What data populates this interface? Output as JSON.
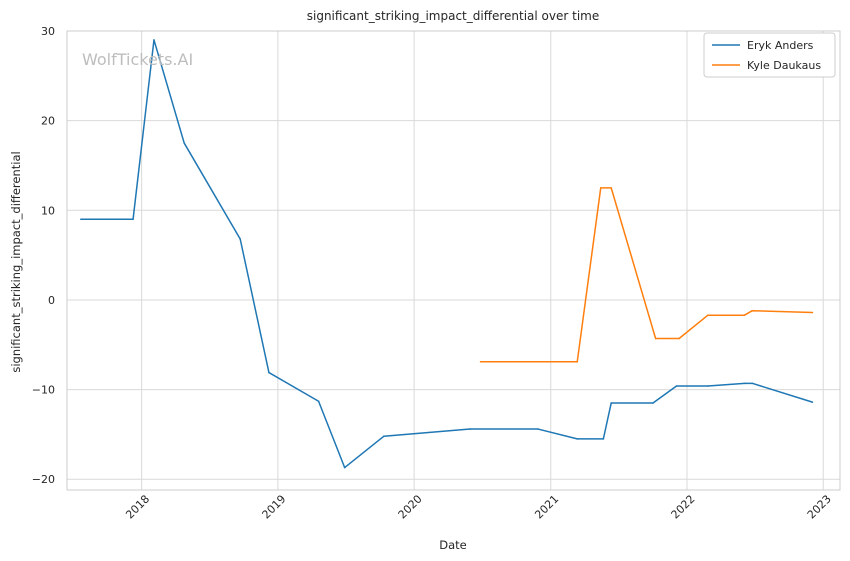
{
  "chart_data": {
    "type": "line",
    "title": "significant_striking_impact_differential over time",
    "xlabel": "Date",
    "ylabel": "significant_striking_impact_differential",
    "watermark": "WolfTickets.AI",
    "x_ticks": [
      "2018",
      "2019",
      "2020",
      "2021",
      "2022",
      "2023"
    ],
    "y_ticks": [
      30,
      20,
      10,
      0,
      -10,
      -20
    ],
    "xlim": [
      "2017-06-15",
      "2023-02-15"
    ],
    "ylim": [
      -21.2,
      30.0
    ],
    "grid": true,
    "legend_position": "top-right",
    "colors": {
      "Eryk Anders": "#1f77b4",
      "Kyle Daukaus": "#ff7f0e",
      "grid": "#d9d9d9",
      "spine": "#cccccc"
    },
    "series": [
      {
        "name": "Eryk Anders",
        "color": "#1f77b4",
        "points": [
          {
            "x": "2017-07-22",
            "y": 9.0
          },
          {
            "x": "2017-12-09",
            "y": 9.0
          },
          {
            "x": "2018-02-03",
            "y": 29.0
          },
          {
            "x": "2018-04-25",
            "y": 17.5
          },
          {
            "x": "2018-09-22",
            "y": 6.8
          },
          {
            "x": "2018-12-08",
            "y": -8.1
          },
          {
            "x": "2019-04-20",
            "y": -11.3
          },
          {
            "x": "2019-06-29",
            "y": -18.7
          },
          {
            "x": "2019-10-12",
            "y": -15.2
          },
          {
            "x": "2020-05-30",
            "y": -14.4
          },
          {
            "x": "2020-11-28",
            "y": -14.4
          },
          {
            "x": "2021-03-13",
            "y": -15.5
          },
          {
            "x": "2021-05-22",
            "y": -15.5
          },
          {
            "x": "2021-06-12",
            "y": -11.5
          },
          {
            "x": "2021-10-02",
            "y": -11.5
          },
          {
            "x": "2021-12-04",
            "y": -9.6
          },
          {
            "x": "2022-02-26",
            "y": -9.6
          },
          {
            "x": "2022-06-04",
            "y": -9.3
          },
          {
            "x": "2022-06-25",
            "y": -9.3
          },
          {
            "x": "2022-12-03",
            "y": -11.4
          }
        ]
      },
      {
        "name": "Kyle Daukaus",
        "color": "#ff7f0e",
        "points": [
          {
            "x": "2020-06-27",
            "y": -6.9
          },
          {
            "x": "2021-03-13",
            "y": -6.9
          },
          {
            "x": "2021-05-15",
            "y": 12.5
          },
          {
            "x": "2021-06-12",
            "y": 12.5
          },
          {
            "x": "2021-10-09",
            "y": -4.3
          },
          {
            "x": "2021-12-11",
            "y": -4.3
          },
          {
            "x": "2022-02-26",
            "y": -1.7
          },
          {
            "x": "2022-06-04",
            "y": -1.7
          },
          {
            "x": "2022-06-25",
            "y": -1.2
          },
          {
            "x": "2022-12-03",
            "y": -1.4
          }
        ]
      }
    ]
  }
}
